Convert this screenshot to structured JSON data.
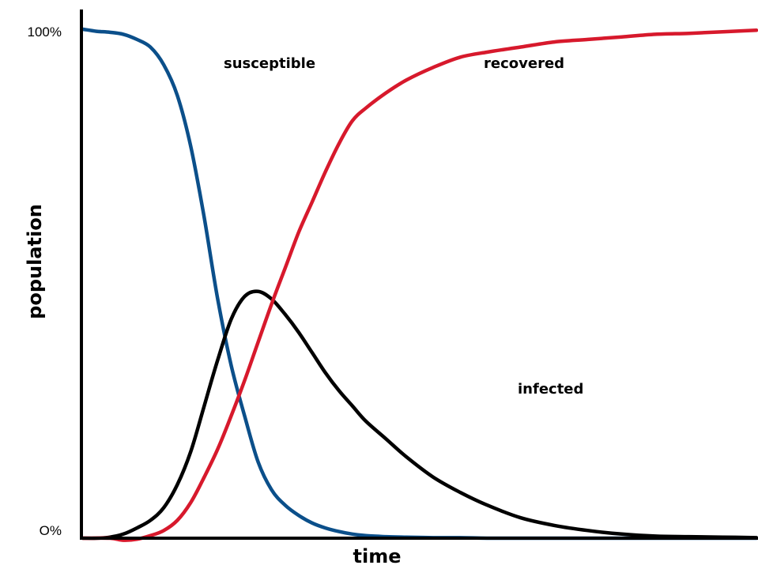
{
  "chart_data": {
    "type": "line",
    "xlabel": "time",
    "ylabel": "population",
    "ylim": [
      0,
      100
    ],
    "xlim": [
      0,
      100
    ],
    "y_ticks": [
      {
        "value": 100,
        "label": "100%"
      },
      {
        "value": 0,
        "label": "O%"
      }
    ],
    "grid": false,
    "legend": "inline labels",
    "series": [
      {
        "name": "susceptible",
        "color": "#0b4f8a",
        "x": [
          0,
          2,
          4,
          6,
          8,
          10,
          12,
          14,
          16,
          18,
          20,
          22,
          24,
          26,
          28,
          30,
          32,
          34,
          36,
          38,
          40,
          42,
          45,
          48,
          52,
          56,
          60,
          65,
          70,
          80,
          90,
          100
        ],
        "y": [
          100,
          99.6,
          99.4,
          99,
          98,
          96.5,
          93,
          87,
          77,
          63,
          47,
          34,
          24,
          15,
          9.5,
          6.5,
          4.5,
          3,
          2,
          1.3,
          0.8,
          0.5,
          0.3,
          0.2,
          0.1,
          0.1,
          0,
          0,
          0,
          0,
          0,
          0
        ]
      },
      {
        "name": "infected",
        "color": "#000000",
        "x": [
          0,
          2,
          4,
          6,
          8,
          10,
          12,
          14,
          16,
          18,
          20,
          22,
          24,
          26,
          28,
          30,
          32,
          34,
          36,
          38,
          40,
          42,
          45,
          48,
          52,
          56,
          60,
          65,
          70,
          75,
          80,
          85,
          90,
          95,
          100
        ],
        "y": [
          0,
          0,
          0.2,
          0.8,
          2,
          3.5,
          6,
          10.5,
          17,
          26,
          35,
          43,
          47.5,
          48.5,
          47,
          44,
          40.5,
          36.5,
          32.5,
          29,
          26,
          23,
          19.5,
          16,
          12,
          9,
          6.5,
          4,
          2.5,
          1.5,
          0.8,
          0.4,
          0.3,
          0.2,
          0.1
        ]
      },
      {
        "name": "recovered",
        "color": "#d7192c",
        "x": [
          0,
          4,
          6,
          8,
          10,
          12,
          14,
          16,
          18,
          20,
          22,
          24,
          26,
          28,
          30,
          32,
          34,
          36,
          38,
          40,
          42,
          45,
          48,
          52,
          56,
          60,
          65,
          70,
          75,
          80,
          85,
          90,
          95,
          100
        ],
        "y": [
          0,
          0,
          -0.4,
          -0.2,
          0.5,
          1.5,
          3.5,
          7,
          12,
          17.5,
          24,
          31,
          38.5,
          46,
          53,
          60,
          66,
          72,
          77.5,
          82,
          84.5,
          87.5,
          90,
          92.5,
          94.5,
          95.5,
          96.5,
          97.5,
          98,
          98.5,
          99,
          99.2,
          99.5,
          99.8
        ]
      }
    ]
  }
}
